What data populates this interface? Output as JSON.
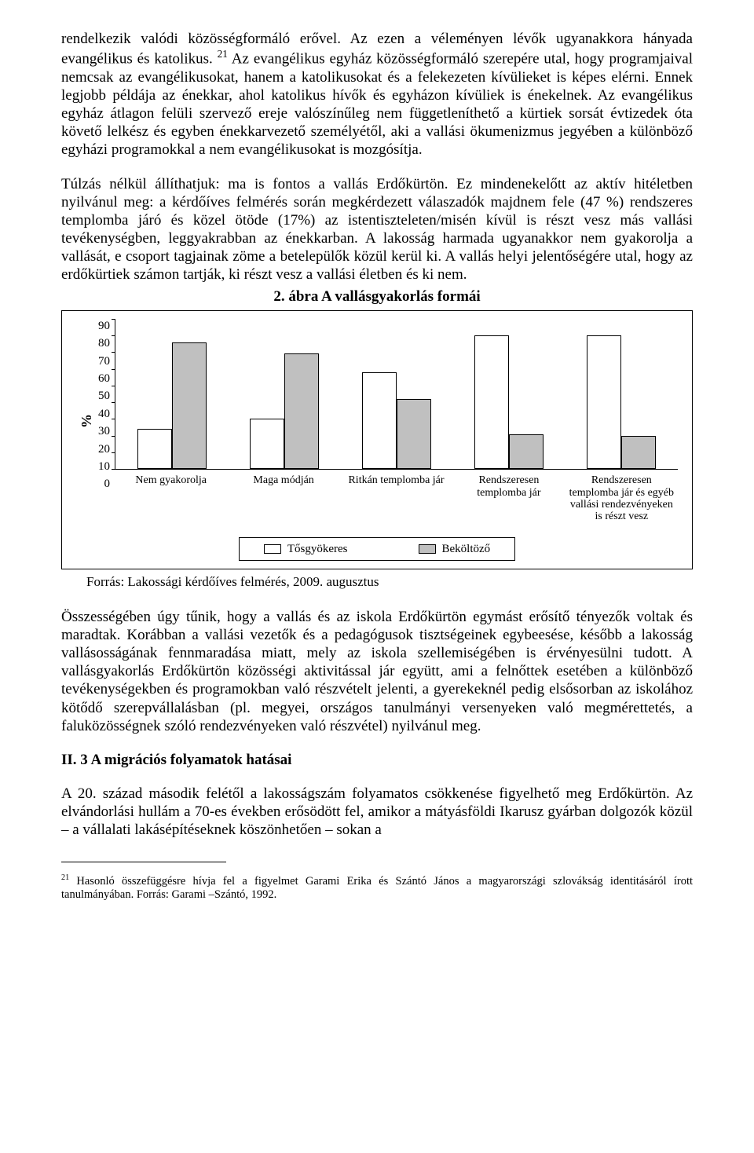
{
  "paragraphs": {
    "p1": "rendelkezik valódi közösségformáló erővel. Az ezen a véleményen lévők ugyanakkora hányada evangélikus és katolikus.",
    "p1b_sup": "21",
    "p1b": " Az evangélikus egyház közösségformáló szerepére utal, hogy programjaival nemcsak az evangélikusokat, hanem a katolikusokat és a felekezeten kívülieket is képes elérni. Ennek legjobb példája az énekkar, ahol katolikus hívők és egyházon kívüliek is énekelnek. Az evangélikus egyház átlagon felüli szervező ereje valószínűleg nem függetleníthető a kürtiek sorsát évtizedek óta követő lelkész és egyben énekkarvezető személyétől, aki a vallási ökumenizmus jegyében a különböző egyházi programokkal a nem evangélikusokat is mozgósítja.",
    "p2": "Túlzás nélkül állíthatjuk: ma is fontos a vallás Erdőkürtön. Ez mindenekelőtt az aktív hitéletben nyilvánul meg: a kérdőíves felmérés során megkérdezett válaszadók majdnem fele (47 %) rendszeres templomba járó és közel ötöde (17%) az istentiszteleten/misén kívül is részt vesz más vallási tevékenységben, leggyakrabban az énekkarban. A lakosság harmada ugyanakkor nem gyakorolja a vallását, e csoport tagjainak zöme a betelepülők közül kerül ki. A vallás helyi jelentőségére utal, hogy az erdőkürtiek számon tartják, ki részt vesz a vallási életben és ki nem.",
    "chart_title": "2. ábra A vallásgyakorlás formái",
    "source": "Forrás: Lakossági kérdőíves felmérés, 2009. augusztus",
    "p3": "Összességében úgy tűnik, hogy a vallás és az iskola Erdőkürtön egymást erősítő tényezők voltak és maradtak. Korábban a vallási vezetők és a pedagógusok tisztségeinek egybeesése, később a lakosság vallásosságának fennmaradása miatt, mely az iskola szellemiségében is érvényesülni tudott. A vallásgyakorlás Erdőkürtön közösségi aktivitással jár együtt, ami a felnőttek esetében a különböző tevékenységekben és programokban való részvételt jelenti, a gyerekeknél pedig elsősorban az iskolához kötődő szerepvállalásban (pl. megyei, országos tanulmányi versenyeken való megmérettetés, a faluközösségnek szóló rendezvényeken való részvétel) nyilvánul meg.",
    "section_head": "II. 3 A migrációs folyamatok hatásai",
    "p4": "A 20. század második felétől a lakosságszám folyamatos csökkenése figyelhető meg Erdőkürtön. Az elvándorlási hullám a 70-es években erősödött fel, amikor a mátyásföldi Ikarusz gyárban dolgozók közül – a vállalati lakásépítéseknek köszönhetően – sokan a",
    "footnote_sup": "21",
    "footnote": " Hasonló összefüggésre hívja fel a figyelmet Garami Erika és Szántó János a magyarországi szlovákság identitásáról írott tanulmányában. Forrás: Garami –Szántó, 1992."
  },
  "chart": {
    "type": "bar",
    "ylabel": "%",
    "ymax": 90,
    "ytick_step": 10,
    "yticks": [
      "90",
      "80",
      "70",
      "60",
      "50",
      "40",
      "30",
      "20",
      "10",
      "0"
    ],
    "categories": [
      "Nem gyakorolja",
      "Maga módján",
      "Ritkán templomba jár",
      "Rendszeresen templomba jár",
      "Rendszeresen templomba jár és egyéb vallási rendezvényeken is részt vesz"
    ],
    "series": [
      {
        "name": "Tősgyökeres",
        "color": "#ffffff",
        "values": [
          24,
          30,
          58,
          80,
          80
        ]
      },
      {
        "name": "Beköltöző",
        "color": "#c0c0c0",
        "values": [
          76,
          69,
          42,
          21,
          20
        ]
      }
    ],
    "border_color": "#000000",
    "background": "#ffffff"
  }
}
